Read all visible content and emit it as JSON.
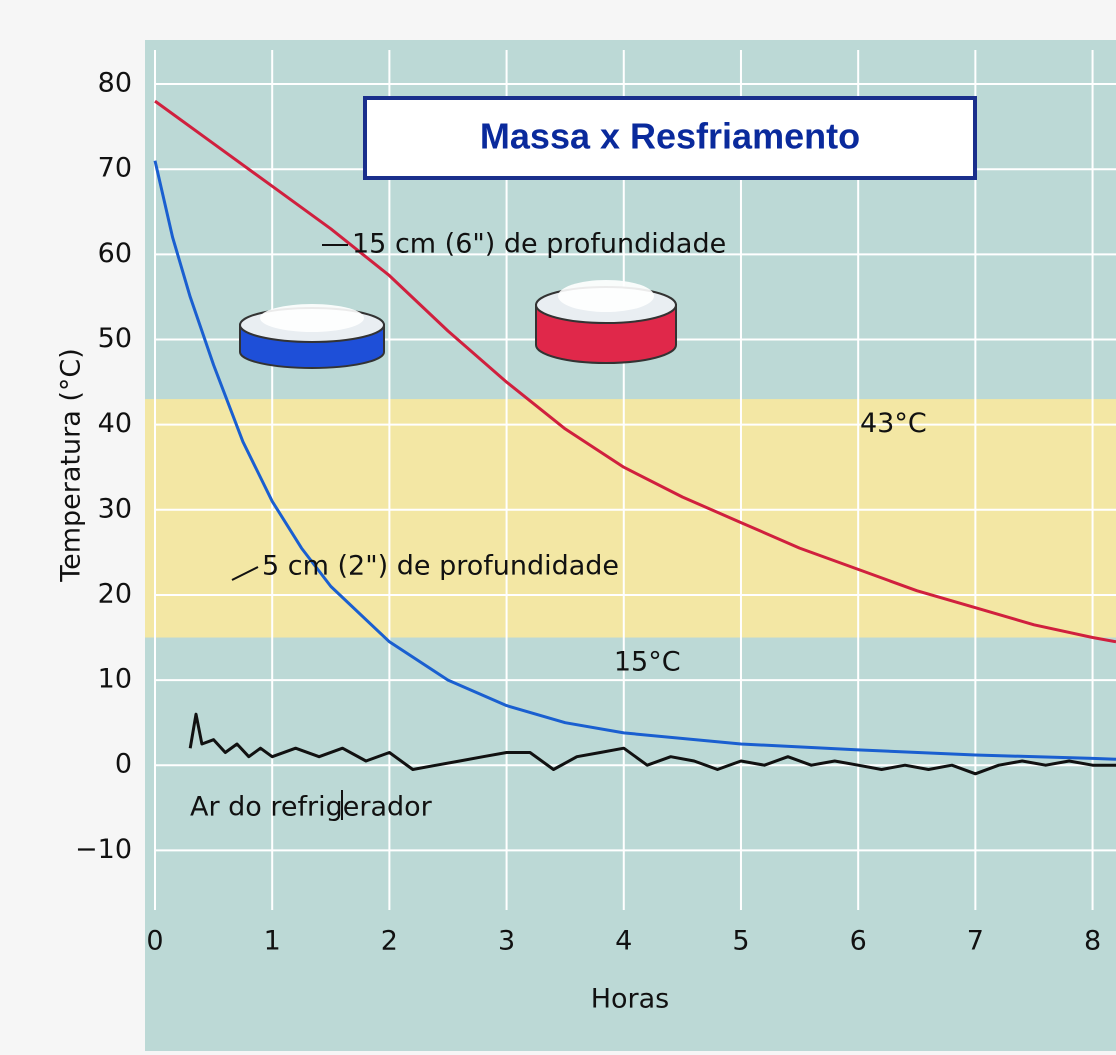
{
  "chart_data": {
    "type": "line",
    "title": "Massa x Resfriamento",
    "xlabel": "Horas",
    "ylabel": "Temperatura (°C)",
    "xlim": [
      0,
      8.2
    ],
    "ylim": [
      -17,
      84
    ],
    "xticks": [
      0,
      1,
      2,
      3,
      4,
      5,
      6,
      7,
      8
    ],
    "yticks": [
      {
        "value": -10,
        "label": "−10"
      },
      0,
      10,
      20,
      30,
      40,
      50,
      60,
      70,
      80
    ],
    "grid": true,
    "bands": [
      {
        "from": 15,
        "to": 43,
        "color": "#f3e7a4"
      }
    ],
    "annotations": [
      {
        "text": "43°C",
        "x": 6.3,
        "y": 40
      },
      {
        "text": "15°C",
        "x": 4.2,
        "y": 12
      }
    ],
    "series": [
      {
        "name": "15 cm (6\") de profundidade",
        "color": "#d0203e",
        "x": [
          0,
          0.5,
          1,
          1.5,
          2,
          2.5,
          3,
          3.5,
          4,
          4.5,
          5,
          5.5,
          6,
          6.5,
          7,
          7.5,
          8,
          8.2
        ],
        "values": [
          78,
          73,
          68,
          63,
          57.5,
          51,
          45,
          39.5,
          35,
          31.5,
          28.5,
          25.5,
          23,
          20.5,
          18.5,
          16.5,
          15,
          14.5
        ]
      },
      {
        "name": "5 cm (2\") de profundidade",
        "color": "#1a5fd0",
        "x": [
          0,
          0.15,
          0.3,
          0.5,
          0.75,
          1,
          1.25,
          1.5,
          2,
          2.5,
          3,
          3.5,
          4,
          5,
          6,
          7,
          8,
          8.2
        ],
        "values": [
          71,
          62,
          55,
          47,
          38,
          31,
          25.5,
          21,
          14.5,
          10,
          7,
          5,
          3.8,
          2.5,
          1.8,
          1.2,
          0.8,
          0.7
        ]
      },
      {
        "name": "Ar do refrigerador",
        "color": "#111111",
        "x": [
          0.3,
          0.35,
          0.4,
          0.5,
          0.6,
          0.7,
          0.8,
          0.9,
          1.0,
          1.2,
          1.4,
          1.6,
          1.8,
          2.0,
          2.2,
          2.4,
          2.6,
          2.8,
          3.0,
          3.2,
          3.4,
          3.6,
          3.8,
          4.0,
          4.2,
          4.4,
          4.6,
          4.8,
          5.0,
          5.2,
          5.4,
          5.6,
          5.8,
          6.0,
          6.2,
          6.4,
          6.6,
          6.8,
          7.0,
          7.2,
          7.4,
          7.6,
          7.8,
          8.0,
          8.2
        ],
        "values": [
          2,
          6,
          2.5,
          3,
          1.5,
          2.5,
          1,
          2,
          1,
          2,
          1,
          2,
          0.5,
          1.5,
          -0.5,
          0,
          0.5,
          1,
          1.5,
          1.5,
          -0.5,
          1,
          1.5,
          2,
          0,
          1,
          0.5,
          -0.5,
          0.5,
          0,
          1,
          0,
          0.5,
          0,
          -0.5,
          0,
          -0.5,
          0,
          -1,
          0,
          0.5,
          0,
          0.5,
          0,
          0
        ]
      }
    ]
  }
}
